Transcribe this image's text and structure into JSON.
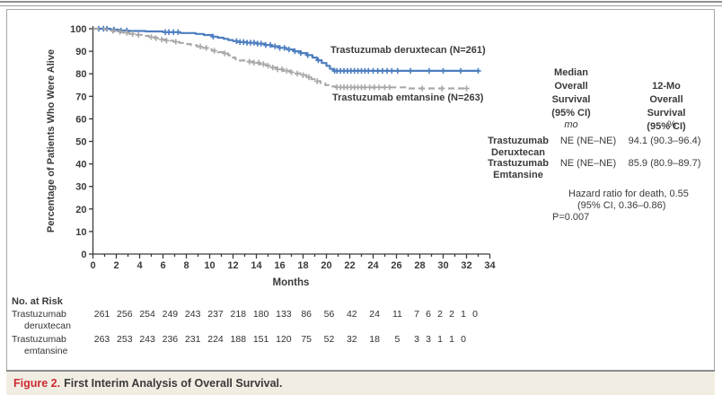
{
  "chart_data": {
    "type": "line",
    "subtype": "kaplan_meier_step",
    "xlabel": "Months",
    "ylabel": "Percentage of Patients Who Were Alive",
    "xlim": [
      0,
      34
    ],
    "ylim": [
      0,
      100
    ],
    "xtick_step_major": 2,
    "xtick_step_minor": 1,
    "ytick_step": 10,
    "grid": "off",
    "series": [
      {
        "name": "Trastuzumab deruxtecan (N=261)",
        "color": "#4d7ebf",
        "line_style": "solid",
        "points": [
          [
            0,
            100
          ],
          [
            1.4,
            100
          ],
          [
            1.5,
            99.6
          ],
          [
            2.2,
            99.2
          ],
          [
            3,
            99
          ],
          [
            4.5,
            98.8
          ],
          [
            6,
            98.5
          ],
          [
            7.5,
            98.1
          ],
          [
            8.8,
            97.7
          ],
          [
            9.5,
            97.2
          ],
          [
            10.2,
            96.5
          ],
          [
            10.7,
            96
          ],
          [
            11.2,
            95.5
          ],
          [
            11.6,
            95
          ],
          [
            12,
            94.5
          ],
          [
            12.4,
            94.1
          ],
          [
            13.2,
            93.8
          ],
          [
            14,
            93.4
          ],
          [
            14.7,
            92.8
          ],
          [
            15.3,
            92.2
          ],
          [
            16,
            91.5
          ],
          [
            16.6,
            90.8
          ],
          [
            17.2,
            90
          ],
          [
            17.8,
            89.2
          ],
          [
            18.3,
            88.3
          ],
          [
            18.8,
            87.2
          ],
          [
            19.2,
            86
          ],
          [
            19.6,
            84.8
          ],
          [
            20,
            83.5
          ],
          [
            20.3,
            82.2
          ],
          [
            20.6,
            81.3
          ],
          [
            33.1,
            81.3
          ]
        ],
        "censor_months": [
          0.5,
          0.9,
          1.2,
          1.8,
          2.4,
          2.9,
          6.2,
          6.5,
          6.9,
          7.3,
          10.3,
          12.3,
          12.6,
          12.9,
          13.2,
          13.5,
          13.8,
          14.1,
          14.4,
          14.8,
          15.2,
          15.6,
          16,
          16.4,
          16.8,
          17.3,
          17.8,
          18.4,
          19.3,
          20.7,
          20.9,
          21.2,
          21.5,
          21.8,
          22.1,
          22.4,
          22.7,
          23,
          23.3,
          23.6,
          24,
          24.4,
          24.8,
          25.2,
          25.6,
          26.1,
          27.2,
          28.8,
          30,
          31.5,
          33
        ]
      },
      {
        "name": "Trastuzumab emtansine (N=263)",
        "color": "#a9a9a9",
        "line_style": "dashed",
        "points": [
          [
            0,
            100
          ],
          [
            0.9,
            100
          ],
          [
            1,
            99.6
          ],
          [
            1.6,
            99.1
          ],
          [
            2.1,
            98.7
          ],
          [
            2.6,
            98.2
          ],
          [
            3.1,
            97.7
          ],
          [
            3.6,
            97.3
          ],
          [
            4.2,
            96.8
          ],
          [
            4.8,
            96.3
          ],
          [
            5.3,
            95.8
          ],
          [
            5.8,
            95.2
          ],
          [
            6.3,
            94.7
          ],
          [
            6.9,
            94.2
          ],
          [
            7.4,
            93.7
          ],
          [
            7.9,
            93.2
          ],
          [
            8.4,
            92.7
          ],
          [
            8.9,
            92.1
          ],
          [
            9.4,
            91.5
          ],
          [
            9.8,
            90.8
          ],
          [
            10.2,
            90.2
          ],
          [
            10.7,
            89.6
          ],
          [
            11.2,
            89
          ],
          [
            11.6,
            88.2
          ],
          [
            11.9,
            87.2
          ],
          [
            12.2,
            86.5
          ],
          [
            12.5,
            85.9
          ],
          [
            13.2,
            85.4
          ],
          [
            13.8,
            84.9
          ],
          [
            14.3,
            84.3
          ],
          [
            14.8,
            83.6
          ],
          [
            15.3,
            82.8
          ],
          [
            15.8,
            82
          ],
          [
            16.3,
            81.3
          ],
          [
            16.9,
            80.7
          ],
          [
            17.4,
            80.1
          ],
          [
            17.9,
            79.4
          ],
          [
            18.3,
            78.5
          ],
          [
            18.7,
            77.6
          ],
          [
            19.1,
            76.7
          ],
          [
            19.5,
            75.8
          ],
          [
            19.9,
            75
          ],
          [
            20.3,
            74.4
          ],
          [
            20.8,
            74
          ],
          [
            26.5,
            74
          ],
          [
            27,
            73.5
          ],
          [
            32.1,
            73.5
          ]
        ],
        "censor_months": [
          1.7,
          2.3,
          2.9,
          3.4,
          3.9,
          5,
          5.4,
          5.9,
          6.3,
          7.1,
          9.2,
          9.7,
          10.4,
          11.3,
          13.4,
          13.8,
          14.2,
          14.6,
          15,
          15.4,
          15.8,
          16.2,
          16.6,
          17,
          17.5,
          18,
          18.5,
          19.2,
          20.9,
          21.2,
          21.5,
          21.8,
          22.1,
          22.4,
          22.7,
          23,
          23.3,
          23.7,
          24.1,
          24.5,
          25,
          25.4,
          28.2,
          29.9,
          32
        ]
      }
    ]
  },
  "stats_table": {
    "col_median_header": "Median\nOverall\nSurvival\n(95% CI)",
    "col_12mo_header": "12-Mo Overall\nSurvival\n(95% CI)",
    "unit_median": "mo",
    "unit_12mo": "%",
    "rows": [
      {
        "label": "Trastuzumab\nDeruxtecan",
        "median": "NE (NE–NE)",
        "os12": "94.1 (90.3–96.4)"
      },
      {
        "label": "Trastuzumab\nEmtansine",
        "median": "NE (NE–NE)",
        "os12": "85.9 (80.9–89.7)"
      }
    ],
    "hazard_line1": "Hazard ratio for death, 0.55",
    "hazard_line2": "(95% CI, 0.36–0.86)",
    "hazard_line3": "P=0.007"
  },
  "at_risk": {
    "title": "No. at Risk",
    "rows": [
      {
        "label_line1": "Trastuzumab",
        "label_line2": "deruxtecan",
        "months": [
          0,
          2,
          4,
          6,
          8,
          10,
          12,
          14,
          16,
          18,
          20,
          22,
          24,
          26,
          28,
          29,
          30,
          31,
          32,
          33
        ],
        "values": [
          261,
          256,
          254,
          249,
          243,
          237,
          218,
          180,
          133,
          86,
          56,
          42,
          24,
          11,
          7,
          6,
          2,
          2,
          1,
          0
        ]
      },
      {
        "label_line1": "Trastuzumab",
        "label_line2": "emtansine",
        "months": [
          0,
          2,
          4,
          6,
          8,
          10,
          12,
          14,
          16,
          18,
          20,
          22,
          24,
          26,
          28,
          29,
          30,
          31,
          32
        ],
        "values": [
          263,
          253,
          243,
          236,
          231,
          224,
          188,
          151,
          120,
          75,
          52,
          32,
          18,
          5,
          3,
          3,
          1,
          1,
          0
        ]
      }
    ]
  },
  "caption": {
    "label": "Figure 2.",
    "text": "First Interim Analysis of Overall Survival."
  }
}
